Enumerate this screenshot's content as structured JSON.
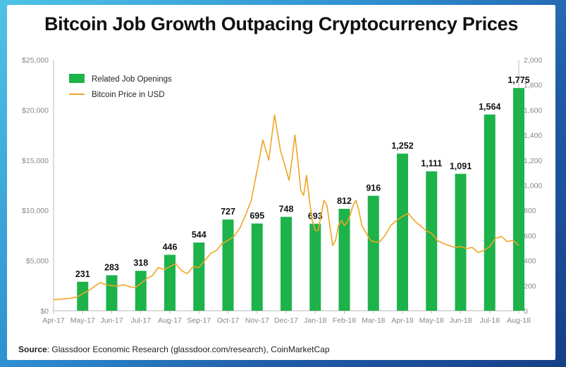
{
  "title": "Bitcoin Job Growth Outpacing Cryptocurrency Prices",
  "source": {
    "label": "Source",
    "text": ": Glassdoor Economic Research (glassdoor.com/research), CoinMarketCap"
  },
  "colors": {
    "bar": "#1db34a",
    "line": "#f0a423",
    "axis": "#bbbbbb"
  },
  "chart_data": {
    "type": "bar",
    "legend_position": "top-left",
    "legend": [
      "Related Job Openings",
      "Bitcoin Price in USD"
    ],
    "x_ticks": [
      "Apr-17",
      "May-17",
      "Jun-17",
      "Jul-17",
      "Aug-17",
      "Sep-17",
      "Oct-17",
      "Nov-17",
      "Dec-17",
      "Jan-18",
      "Feb-18",
      "Mar-18",
      "Apr-18",
      "May-18",
      "Jun-18",
      "Jul-18",
      "Aug-18"
    ],
    "left_axis": {
      "ticks": [
        "$0",
        "$5,000",
        "$10,000",
        "$15,000",
        "$20,000",
        "$25,000"
      ],
      "ylim": [
        0,
        25000
      ]
    },
    "right_axis": {
      "ticks": [
        "0",
        "200",
        "400",
        "600",
        "800",
        "1,000",
        "1,200",
        "1,400",
        "1,600",
        "1,800",
        "2,000"
      ],
      "ylim": [
        0,
        2000
      ]
    },
    "series": [
      {
        "name": "Related Job Openings",
        "type": "bar",
        "axis": "right",
        "categories": [
          "May-17",
          "Jun-17",
          "Jul-17",
          "Aug-17",
          "Sep-17",
          "Oct-17",
          "Nov-17",
          "Dec-17",
          "Jan-18",
          "Feb-18",
          "Mar-18",
          "Apr-18",
          "May-18",
          "Jun-18",
          "Jul-18",
          "Aug-18"
        ],
        "values": [
          231,
          283,
          318,
          446,
          544,
          727,
          695,
          748,
          693,
          812,
          916,
          1252,
          1111,
          1091,
          1564,
          1775
        ],
        "value_labels": [
          "231",
          "283",
          "318",
          "446",
          "544",
          "727",
          "695",
          "748",
          "693",
          "812",
          "916",
          "1,252",
          "1,111",
          "1,091",
          "1,564",
          "1,775"
        ]
      },
      {
        "name": "Bitcoin Price in USD",
        "type": "line",
        "axis": "left",
        "x": [
          0,
          0.2,
          0.4,
          0.6,
          0.8,
          1.0,
          1.2,
          1.4,
          1.6,
          1.8,
          2.0,
          2.2,
          2.4,
          2.6,
          2.8,
          3.0,
          3.2,
          3.4,
          3.6,
          3.8,
          4.0,
          4.2,
          4.4,
          4.6,
          4.8,
          5.0,
          5.2,
          5.4,
          5.6,
          5.8,
          6.0,
          6.2,
          6.4,
          6.6,
          6.8,
          7.0,
          7.2,
          7.4,
          7.6,
          7.8,
          8.0,
          8.1,
          8.2,
          8.3,
          8.4,
          8.5,
          8.6,
          8.7,
          8.8,
          8.9,
          9.0,
          9.1,
          9.2,
          9.3,
          9.4,
          9.5,
          9.6,
          9.7,
          9.8,
          9.9,
          10.0,
          10.1,
          10.2,
          10.3,
          10.4,
          10.5,
          10.6,
          10.7,
          10.8,
          10.9,
          11.0,
          11.2,
          11.4,
          11.6,
          11.8,
          12.0,
          12.2,
          12.4,
          12.6,
          12.8,
          13.0,
          13.2,
          13.4,
          13.6,
          13.8,
          14.0,
          14.2,
          14.4,
          14.6,
          14.8,
          15.0,
          15.2,
          15.4,
          15.6,
          15.8,
          16.0
        ],
        "values": [
          1100,
          1150,
          1200,
          1250,
          1350,
          1700,
          2000,
          2400,
          2800,
          2600,
          2500,
          2450,
          2600,
          2400,
          2300,
          2700,
          3200,
          3500,
          4300,
          4100,
          4400,
          4700,
          4000,
          3700,
          4400,
          4300,
          5000,
          5700,
          6000,
          6700,
          7000,
          7400,
          8200,
          9500,
          11000,
          14000,
          17000,
          15000,
          19500,
          16000,
          14000,
          13000,
          15000,
          17500,
          15000,
          12000,
          11500,
          13500,
          11000,
          9000,
          8000,
          8000,
          9500,
          11000,
          10500,
          8500,
          6500,
          7000,
          8500,
          9000,
          8500,
          8800,
          9500,
          10500,
          11000,
          10000,
          8500,
          8000,
          7500,
          7000,
          6900,
          6800,
          7500,
          8500,
          9000,
          9400,
          9700,
          9000,
          8500,
          8000,
          7700,
          7000,
          6700,
          6500,
          6300,
          6400,
          6200,
          6300,
          5800,
          6000,
          6400,
          7200,
          7400,
          6900,
          7000,
          6500
        ]
      }
    ]
  }
}
